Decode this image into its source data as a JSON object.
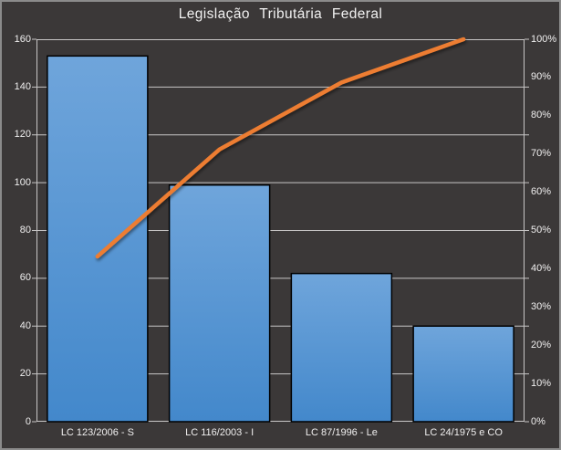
{
  "window": {
    "background": "#3B3838",
    "border_color": "#8B8B8B"
  },
  "chart_data": {
    "type": "bar",
    "subtype": "pareto-bar-plus-cumulative-line",
    "title": "Legislação Tributária Federal",
    "categories": [
      "LC 123/2006 - S",
      "LC 116/2003 - I",
      "LC 87/1996 - Le",
      "LC 24/1975 e CO"
    ],
    "series": [
      {
        "name": "frequency-bars",
        "type": "bar",
        "axis": "left",
        "values": [
          153,
          99,
          62,
          40
        ]
      },
      {
        "name": "cumulative-percent-line",
        "type": "line",
        "axis": "right",
        "values": [
          43.2,
          71.2,
          88.7,
          100
        ]
      }
    ],
    "left_axis": {
      "min": 0,
      "max": 160,
      "step": 20,
      "tick_labels": [
        "0",
        "20",
        "40",
        "60",
        "80",
        "100",
        "120",
        "140",
        "160"
      ]
    },
    "right_axis": {
      "min": 0,
      "max": 100,
      "step": 10,
      "tick_labels": [
        "0%",
        "10%",
        "20%",
        "30%",
        "40%",
        "50%",
        "60%",
        "70%",
        "80%",
        "90%",
        "100%"
      ]
    },
    "grid": true,
    "legend": "none",
    "colors": {
      "bar_top": "#6FA5DB",
      "bar_bottom": "#4388CB",
      "bar_border": "#000000",
      "line": "#ED7D31",
      "grid_line": "#C8C6C6",
      "axis_line": "#C8C6C6",
      "axis_text": "#F0EFEF",
      "title_text": "#F2F2F2"
    }
  }
}
